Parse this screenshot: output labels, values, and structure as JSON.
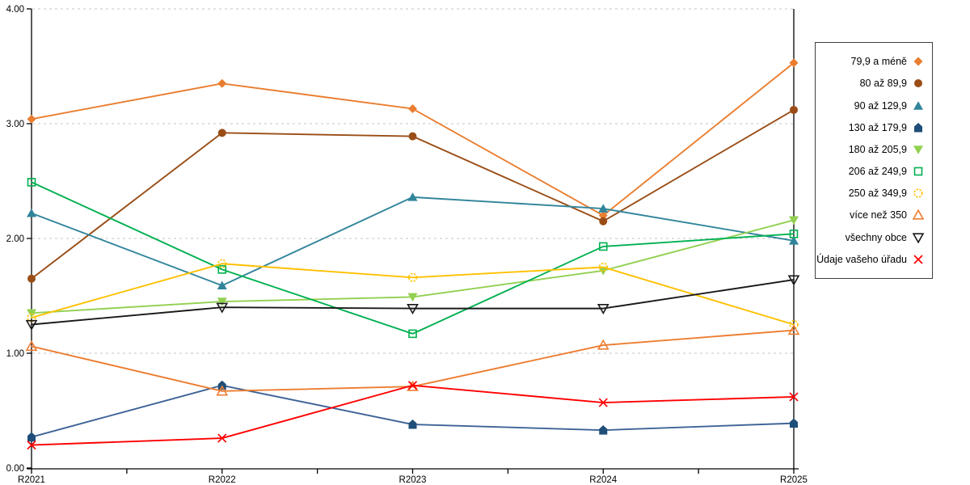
{
  "chart_data": {
    "type": "line",
    "title": "",
    "xlabel": "",
    "ylabel": "",
    "categories": [
      "R2021",
      "R2022",
      "R2023",
      "R2024",
      "R2025"
    ],
    "ylim": [
      0,
      4
    ],
    "y_tick_labels": [
      "0.00",
      "1.00",
      "2.00",
      "3.00",
      "4.00"
    ],
    "grid": "horizontal-dashed",
    "grid_color": "#C6C6C6",
    "axis_color": "#000000",
    "legend_position": "right",
    "series": [
      {
        "name": "79,9 a méně",
        "marker": "diamond-filled",
        "color": "#E97E30",
        "marker_color": "#E97E30",
        "values": [
          3.04,
          3.35,
          3.13,
          2.2,
          3.53
        ]
      },
      {
        "name": "80 až 89,9",
        "marker": "circle-filled",
        "color": "#9A4D16",
        "marker_color": "#9A4D16",
        "values": [
          1.65,
          2.92,
          2.89,
          2.15,
          3.12
        ]
      },
      {
        "name": "90 až 129,9",
        "marker": "triangle-up-filled",
        "color": "#31859B",
        "marker_color": "#31859B",
        "values": [
          2.22,
          1.59,
          2.36,
          2.26,
          1.98
        ]
      },
      {
        "name": "130 až 179,9",
        "marker": "pentagon-filled",
        "color": "#3E6396",
        "marker_color": "#1F4E79",
        "values": [
          0.27,
          0.72,
          0.38,
          0.33,
          0.39
        ]
      },
      {
        "name": "180 až 205,9",
        "marker": "triangle-down-filled",
        "color": "#92D050",
        "marker_color": "#92D050",
        "values": [
          1.35,
          1.45,
          1.49,
          1.72,
          2.16
        ]
      },
      {
        "name": "206 až 249,9",
        "marker": "square-open",
        "color": "#00B050",
        "marker_color": "#00B050",
        "values": [
          2.49,
          1.73,
          1.17,
          1.93,
          2.04
        ]
      },
      {
        "name": "250 až 349,9",
        "marker": "circle-open-dashed",
        "color": "#FFC000",
        "marker_color": "#FFC000",
        "values": [
          1.31,
          1.78,
          1.66,
          1.75,
          1.25
        ]
      },
      {
        "name": "více než 350",
        "marker": "triangle-up-open",
        "color": "#ED7D31",
        "marker_color": "#ED7D31",
        "values": [
          1.06,
          0.67,
          0.71,
          1.07,
          1.2
        ]
      },
      {
        "name": "všechny obce",
        "marker": "triangle-down-open",
        "color": "#1A1A1A",
        "marker_color": "#1A1A1A",
        "values": [
          1.25,
          1.4,
          1.39,
          1.39,
          1.64
        ]
      },
      {
        "name": "Údaje vašeho úřadu",
        "marker": "x",
        "color": "#FF0000",
        "marker_color": "#FF0000",
        "values": [
          0.2,
          0.26,
          0.72,
          0.57,
          0.62
        ]
      }
    ]
  }
}
